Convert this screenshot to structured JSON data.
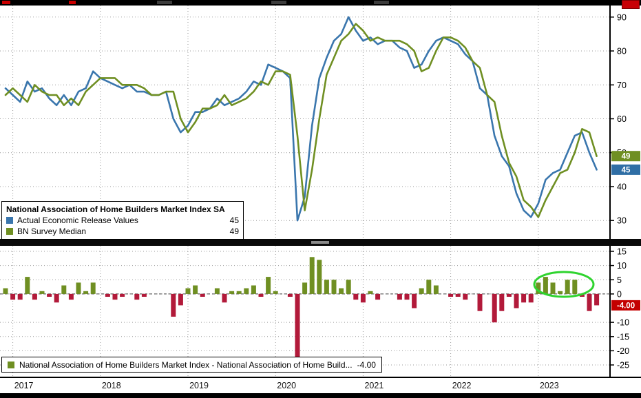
{
  "colors": {
    "blue_line": "#3a76ad",
    "green_line": "#6f8f22",
    "neg_bar": "#b21a3a",
    "badge_blue": "#2f6ea5",
    "badge_green": "#6f8f22",
    "badge_red": "#c40000",
    "grid": "#9a9a9a",
    "frame": "#000000",
    "annotation_green": "#2fd42f"
  },
  "top_panel": {
    "legend": {
      "title": "National Association of Home Builders Market Index SA",
      "series": [
        {
          "label": "Actual Economic Release Values",
          "value": "45"
        },
        {
          "label": "BN Survey Median",
          "value": "49"
        }
      ]
    },
    "badges": [
      {
        "text": "49",
        "value": 49,
        "color": "#6f8f22"
      },
      {
        "text": "45",
        "value": 45,
        "color": "#2f6ea5"
      }
    ],
    "y_ticks": [
      90,
      80,
      70,
      60,
      50,
      40,
      30
    ]
  },
  "bottom_panel": {
    "legend": {
      "label": "National Association of Home Builders Market Index - National Association of Home Build...",
      "value": "-4.00"
    },
    "badge": {
      "text": "-4.00",
      "value": -4,
      "color": "#c40000"
    },
    "y_ticks": [
      15,
      10,
      5,
      0,
      -10,
      -15,
      -20,
      -25
    ]
  },
  "x_axis": {
    "years": [
      "2017",
      "2018",
      "2019",
      "2020",
      "2021",
      "2022",
      "2023"
    ]
  },
  "chart_data": [
    {
      "type": "line",
      "title": "National Association of Home Builders Market Index SA",
      "x_unit": "month",
      "x_start": "2016-12",
      "x_end": "2023-09",
      "x_tick_labels": [
        "2017",
        "2018",
        "2019",
        "2020",
        "2021",
        "2022",
        "2023"
      ],
      "ylim": [
        27,
        93
      ],
      "y_ticks": [
        30,
        40,
        50,
        60,
        70,
        80,
        90
      ],
      "grid": "dotted",
      "legend_position": "bottom-left",
      "series": [
        {
          "name": "Actual Economic Release Values",
          "current": 45,
          "color": "#3a76ad",
          "values": [
            69,
            67,
            65,
            71,
            68,
            69,
            66,
            64,
            67,
            64,
            68,
            69,
            74,
            72,
            71,
            70,
            69,
            70,
            68,
            68,
            67,
            67,
            68,
            60,
            56,
            58,
            62,
            62,
            63,
            66,
            64,
            65,
            66,
            68,
            71,
            70,
            76,
            75,
            74,
            72,
            30,
            37,
            58,
            72,
            78,
            83,
            85,
            90,
            86,
            83,
            84,
            82,
            83,
            83,
            81,
            80,
            75,
            76,
            80,
            83,
            84,
            83,
            82,
            79,
            77,
            69,
            67,
            55,
            49,
            46,
            38,
            33,
            31,
            35,
            42,
            44,
            45,
            50,
            55,
            56,
            50,
            45
          ]
        },
        {
          "name": "BN Survey Median",
          "current": 49,
          "color": "#6f8f22",
          "values": [
            67,
            69,
            67,
            65,
            70,
            68,
            67,
            67,
            64,
            66,
            64,
            68,
            70,
            72,
            72,
            72,
            70,
            70,
            70,
            69,
            67,
            67,
            68,
            68,
            60,
            56,
            59,
            63,
            63,
            64,
            67,
            64,
            65,
            66,
            68,
            71,
            70,
            74,
            74,
            73,
            55,
            33,
            45,
            60,
            73,
            78,
            83,
            85,
            88,
            86,
            83,
            84,
            83,
            83,
            83,
            82,
            80,
            74,
            75,
            80,
            84,
            84,
            83,
            81,
            77,
            75,
            67,
            65,
            55,
            47,
            43,
            36,
            34,
            31,
            36,
            40,
            44,
            45,
            50,
            57,
            56,
            49
          ]
        }
      ]
    },
    {
      "type": "bar",
      "title": "National Association of Home Builders Market Index - National Association of Home Build...",
      "x_unit": "month",
      "x_start": "2016-12",
      "x_end": "2023-09",
      "ylim": [
        -27,
        16.5
      ],
      "y_ticks": [
        15,
        10,
        5,
        0,
        -5,
        -10,
        -15,
        -20,
        -25
      ],
      "current": -4.0,
      "positive_color": "#6f8f22",
      "negative_color": "#b21a3a",
      "values": [
        2,
        -2,
        -2,
        6,
        -2,
        1,
        -1,
        -3,
        3,
        -2,
        4,
        1,
        4,
        0,
        -1,
        -2,
        -1,
        0,
        -2,
        -1,
        0,
        0,
        0,
        -8,
        -4,
        2,
        3,
        -1,
        0,
        2,
        -3,
        1,
        1,
        2,
        3,
        -1,
        6,
        1,
        0,
        -1,
        -25,
        4,
        13,
        12,
        5,
        5,
        2,
        5,
        -2,
        -3,
        1,
        -2,
        0,
        0,
        -2,
        -2,
        -5,
        2,
        5,
        3,
        0,
        -1,
        -1,
        -2,
        0,
        -6,
        0,
        -10,
        -6,
        -1,
        -5,
        -3,
        -3,
        4,
        6,
        4,
        1,
        5,
        5,
        -1,
        -6,
        -4
      ],
      "annotation": {
        "shape": "ellipse",
        "color": "#2fd42f",
        "highlights": "positive surprise bars in 2023"
      }
    }
  ]
}
